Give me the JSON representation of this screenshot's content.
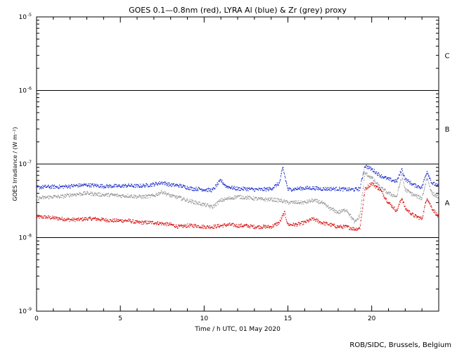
{
  "chart_data": {
    "type": "scatter",
    "title": "GOES 0.1—0.8nm (red), LYRA Al (blue) & Zr (grey) proxy",
    "xlabel": "Time / h UTC, 01 May 2020",
    "ylabel": "GOES Irradiance / (W m⁻²)",
    "xlim": [
      0,
      24
    ],
    "ylim": [
      1e-09,
      1e-05
    ],
    "yscale": "log",
    "x_ticks": [
      0,
      5,
      10,
      15,
      20
    ],
    "y_ticks": [
      {
        "value": 1e-09,
        "base": "10",
        "exp": "-9"
      },
      {
        "value": 1e-08,
        "base": "10",
        "exp": "-8"
      },
      {
        "value": 1e-07,
        "base": "10",
        "exp": "-7"
      },
      {
        "value": 1e-06,
        "base": "10",
        "exp": "-6"
      },
      {
        "value": 1e-05,
        "base": "10",
        "exp": "-5"
      }
    ],
    "flare_thresholds": [
      1e-08,
      1e-07,
      1e-06
    ],
    "flare_classes": [
      {
        "label": "A",
        "y": 3e-08
      },
      {
        "label": "B",
        "y": 3e-07
      },
      {
        "label": "C",
        "y": 3e-06
      }
    ],
    "series": [
      {
        "name": "GOES 0.1—0.8nm",
        "color": "#d40000",
        "x": [
          0,
          0.5,
          1,
          1.5,
          2,
          2.5,
          3,
          3.5,
          4,
          4.5,
          5,
          5.5,
          6,
          6.5,
          7,
          7.5,
          8,
          8.5,
          9,
          9.5,
          10,
          10.5,
          11,
          11.5,
          12,
          12.5,
          13,
          13.5,
          14,
          14.5,
          14.8,
          15,
          15.5,
          16,
          16.5,
          17,
          17.5,
          18,
          18.5,
          19,
          19.3,
          19.6,
          20,
          20.5,
          21,
          21.5,
          21.8,
          22,
          22.5,
          23,
          23.3,
          23.6,
          24
        ],
        "y": [
          1.9e-08,
          1.9e-08,
          1.85e-08,
          1.8e-08,
          1.75e-08,
          1.75e-08,
          1.8e-08,
          1.8e-08,
          1.75e-08,
          1.7e-08,
          1.7e-08,
          1.7e-08,
          1.6e-08,
          1.6e-08,
          1.6e-08,
          1.55e-08,
          1.5e-08,
          1.4e-08,
          1.45e-08,
          1.45e-08,
          1.4e-08,
          1.4e-08,
          1.45e-08,
          1.5e-08,
          1.45e-08,
          1.45e-08,
          1.4e-08,
          1.4e-08,
          1.4e-08,
          1.6e-08,
          2.2e-08,
          1.5e-08,
          1.5e-08,
          1.6e-08,
          1.8e-08,
          1.6e-08,
          1.5e-08,
          1.4e-08,
          1.4e-08,
          1.3e-08,
          1.35e-08,
          4.5e-08,
          5.5e-08,
          4.5e-08,
          3e-08,
          2.3e-08,
          3.5e-08,
          2.5e-08,
          2e-08,
          1.8e-08,
          3.5e-08,
          2.5e-08,
          1.9e-08
        ]
      },
      {
        "name": "LYRA Al",
        "color": "#1020c8",
        "x": [
          0,
          0.5,
          1,
          1.5,
          2,
          2.5,
          3,
          3.5,
          4,
          4.5,
          5,
          5.5,
          6,
          6.5,
          7,
          7.5,
          8,
          8.5,
          9,
          9.3,
          9.6,
          10,
          10.5,
          11,
          11.3,
          11.6,
          12,
          12.5,
          13,
          13.5,
          14,
          14.5,
          14.7,
          15,
          15.5,
          16,
          16.5,
          17,
          17.5,
          18,
          18.5,
          19,
          19.3,
          19.6,
          20,
          20.5,
          21,
          21.5,
          21.8,
          22,
          22.5,
          23,
          23.3,
          23.6,
          24
        ],
        "y": [
          4.8e-08,
          4.9e-08,
          4.9e-08,
          4.9e-08,
          5e-08,
          5.1e-08,
          5.2e-08,
          5.1e-08,
          5e-08,
          5e-08,
          5e-08,
          5.1e-08,
          5e-08,
          5.1e-08,
          5.3e-08,
          5.6e-08,
          5.2e-08,
          5.1e-08,
          4.8e-08,
          4.6e-08,
          4.6e-08,
          4.5e-08,
          4.4e-08,
          6e-08,
          5e-08,
          4.8e-08,
          4.6e-08,
          4.6e-08,
          4.5e-08,
          4.5e-08,
          4.6e-08,
          5.5e-08,
          9e-08,
          4.5e-08,
          4.6e-08,
          4.7e-08,
          4.7e-08,
          4.6e-08,
          4.6e-08,
          4.6e-08,
          4.5e-08,
          4.5e-08,
          4.6e-08,
          9.5e-08,
          8.5e-08,
          7e-08,
          6.2e-08,
          5.8e-08,
          8.5e-08,
          6.2e-08,
          5.2e-08,
          4.8e-08,
          8e-08,
          5.5e-08,
          5e-08
        ]
      },
      {
        "name": "LYRA Zr",
        "color": "#8c8c8c",
        "x": [
          0,
          0.5,
          1,
          1.5,
          2,
          2.5,
          3,
          3.5,
          4,
          4.5,
          5,
          5.5,
          6,
          6.5,
          7,
          7.5,
          8,
          8.5,
          9,
          9.5,
          10,
          10.5,
          11,
          11.5,
          12,
          12.5,
          13,
          13.5,
          14,
          14.5,
          15,
          15.5,
          16,
          16.5,
          17,
          17.5,
          18,
          18.5,
          19,
          19.3,
          19.6,
          20,
          20.5,
          21,
          21.5,
          21.8,
          22,
          22.5,
          23,
          23.3,
          23.6,
          24
        ],
        "y": [
          3.4e-08,
          3.5e-08,
          3.6e-08,
          3.6e-08,
          3.8e-08,
          3.9e-08,
          4e-08,
          3.9e-08,
          3.8e-08,
          3.8e-08,
          3.7e-08,
          3.7e-08,
          3.6e-08,
          3.6e-08,
          3.7e-08,
          4.2e-08,
          3.7e-08,
          3.5e-08,
          3.2e-08,
          3e-08,
          2.8e-08,
          2.6e-08,
          3.2e-08,
          3.4e-08,
          3.6e-08,
          3.5e-08,
          3.4e-08,
          3.3e-08,
          3.3e-08,
          3.2e-08,
          3e-08,
          3e-08,
          3e-08,
          3.2e-08,
          3e-08,
          2.5e-08,
          2.2e-08,
          2.4e-08,
          1.6e-08,
          2e-08,
          7.5e-08,
          6.5e-08,
          4.8e-08,
          4e-08,
          3.6e-08,
          7e-08,
          4.5e-08,
          3.8e-08,
          3.4e-08,
          6.5e-08,
          4e-08,
          3.5e-08
        ]
      }
    ],
    "grid": false,
    "legend": "none"
  },
  "credit": "ROB/SIDC, Brussels, Belgium"
}
